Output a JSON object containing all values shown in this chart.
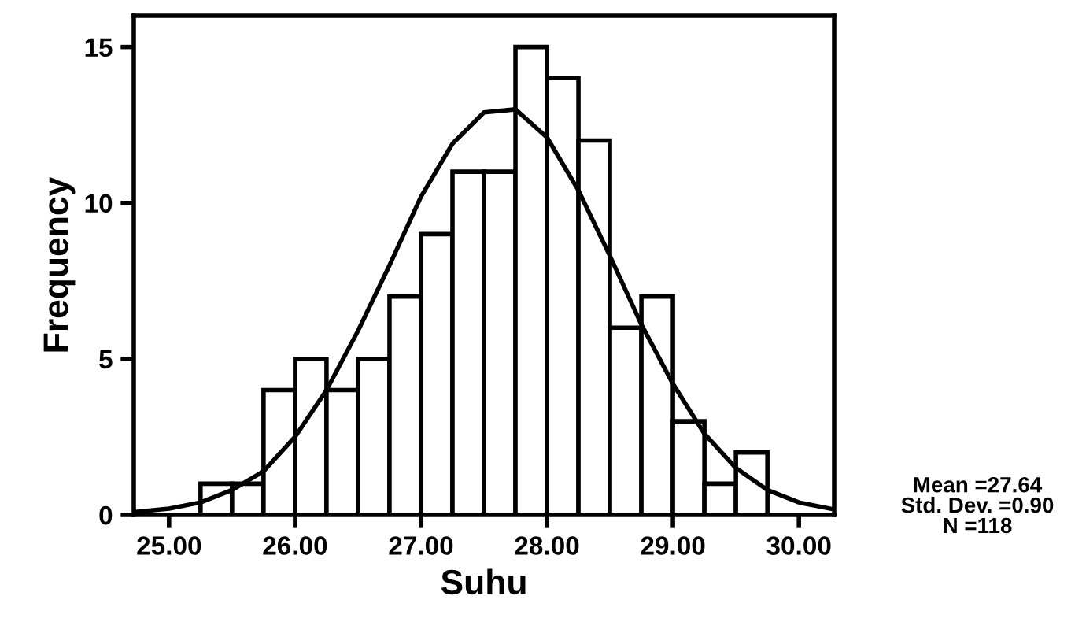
{
  "chart_data": {
    "type": "histogram",
    "xlabel": "Suhu",
    "ylabel": "Frequency",
    "bins": [
      25.25,
      25.5,
      25.75,
      26.0,
      26.25,
      26.5,
      26.75,
      27.0,
      27.25,
      27.5,
      27.75,
      28.0,
      28.25,
      28.5,
      28.75,
      29.0,
      29.25,
      29.5,
      29.75
    ],
    "series": [
      {
        "color": "#ffffff",
        "values": [
          1,
          1,
          4,
          5,
          4,
          5,
          7,
          9,
          11,
          11,
          15,
          14,
          12,
          6,
          7,
          3,
          1,
          2
        ]
      },
      {
        "type": "line",
        "color": "#000000",
        "x": [
          24.75,
          25.0,
          25.25,
          25.5,
          25.75,
          26.0,
          26.25,
          26.5,
          26.75,
          27.0,
          27.25,
          27.5,
          27.75,
          28.0,
          28.25,
          28.5,
          28.75,
          29.0,
          29.25,
          29.5,
          29.75,
          30.0,
          30.25
        ],
        "values": [
          0.1,
          0.2,
          0.4,
          0.8,
          1.4,
          2.5,
          4.0,
          5.9,
          8.0,
          10.2,
          11.9,
          12.9,
          13.0,
          12.1,
          10.4,
          8.3,
          6.1,
          4.2,
          2.6,
          1.5,
          0.8,
          0.4,
          0.2
        ]
      }
    ],
    "xlim": [
      24.72,
      30.28
    ],
    "ylim": [
      0,
      16.0
    ],
    "xticks": [
      {
        "value": 25,
        "label": "25.00"
      },
      {
        "value": 26,
        "label": "26.00"
      },
      {
        "value": 27,
        "label": "27.00"
      },
      {
        "value": 28,
        "label": "28.00"
      },
      {
        "value": 29,
        "label": "29.00"
      },
      {
        "value": 30,
        "label": "30.00"
      }
    ],
    "yticks": [
      0,
      5,
      10,
      15
    ],
    "annotations": [
      "Mean =27.64",
      "Std. Dev. =0.90",
      "N =118"
    ]
  }
}
